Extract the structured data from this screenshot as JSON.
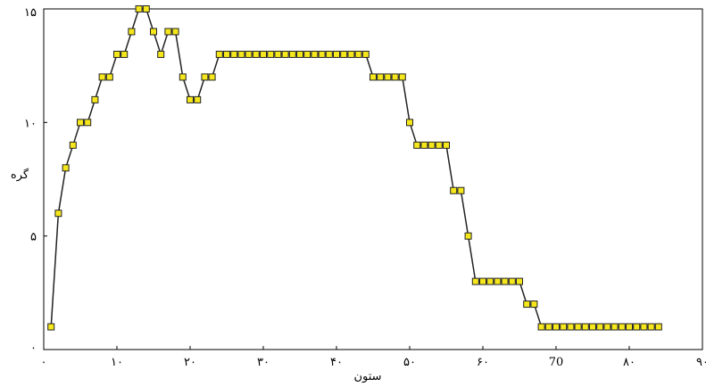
{
  "chart_data": {
    "type": "line",
    "title": "",
    "xlabel": "ستون",
    "ylabel": "گره",
    "xlim": [
      0,
      90
    ],
    "ylim": [
      0,
      15
    ],
    "x_ticks": [
      {
        "value": 0,
        "label": "۰"
      },
      {
        "value": 10,
        "label": "۱۰"
      },
      {
        "value": 20,
        "label": "۲۰"
      },
      {
        "value": 30,
        "label": "۳۰"
      },
      {
        "value": 40,
        "label": "۴۰"
      },
      {
        "value": 50,
        "label": "۵۰"
      },
      {
        "value": 60,
        "label": "۶۰"
      },
      {
        "value": 70,
        "label": "70"
      },
      {
        "value": 80,
        "label": "۸۰"
      },
      {
        "value": 90,
        "label": "۹۰"
      }
    ],
    "y_ticks": [
      {
        "value": 0,
        "label": "۰"
      },
      {
        "value": 5,
        "label": "۵"
      },
      {
        "value": 10,
        "label": "۱۰"
      },
      {
        "value": 15,
        "label": "۱۵"
      }
    ],
    "grid": false,
    "marker_fill": "#f5e71c",
    "marker_stroke": "#222222",
    "line_color": "#222222",
    "series": [
      {
        "x": [
          1,
          2,
          3,
          4,
          5,
          6,
          7,
          8,
          9,
          10,
          11,
          12,
          13,
          14,
          15,
          16,
          17,
          18,
          19,
          20,
          21,
          22,
          23,
          24,
          25,
          26,
          27,
          28,
          29,
          30,
          31,
          32,
          33,
          34,
          35,
          36,
          37,
          38,
          39,
          40,
          41,
          42,
          43,
          44,
          45,
          46,
          47,
          48,
          49,
          50,
          51,
          52,
          53,
          54,
          55,
          56,
          57,
          58,
          59,
          60,
          61,
          62,
          63,
          64,
          65,
          66,
          67,
          68,
          69,
          70,
          71,
          72,
          73,
          74,
          75,
          76,
          77,
          78,
          79,
          80,
          81,
          82,
          83,
          84
        ],
        "y": [
          1,
          6,
          8,
          9,
          10,
          10,
          11,
          12,
          12,
          13,
          13,
          14,
          15,
          15,
          14,
          13,
          14,
          14,
          12,
          11,
          11,
          12,
          12,
          13,
          13,
          13,
          13,
          13,
          13,
          13,
          13,
          13,
          13,
          13,
          13,
          13,
          13,
          13,
          13,
          13,
          13,
          13,
          13,
          13,
          12,
          12,
          12,
          12,
          12,
          10,
          9,
          9,
          9,
          9,
          9,
          7,
          7,
          5,
          3,
          3,
          3,
          3,
          3,
          3,
          3,
          2,
          2,
          1,
          1,
          1,
          1,
          1,
          1,
          1,
          1,
          1,
          1,
          1,
          1,
          1,
          1,
          1,
          1,
          1
        ]
      }
    ]
  }
}
